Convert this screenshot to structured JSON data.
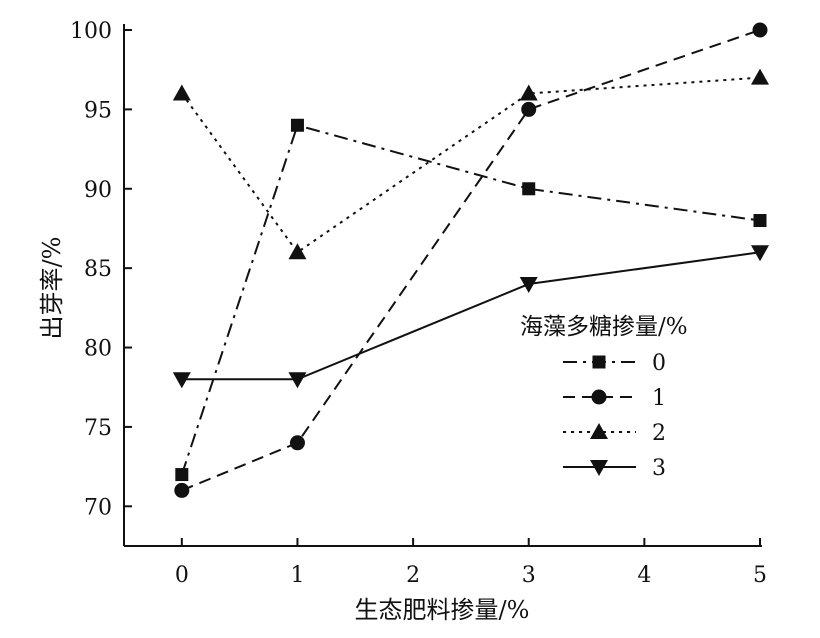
{
  "chart_data": {
    "type": "line",
    "xlabel": "生态肥料掺量/%",
    "ylabel": "出芽率/%",
    "x": [
      0,
      1,
      3,
      5
    ],
    "xlim": [
      -0.5,
      5
    ],
    "ylim": [
      67.5,
      100
    ],
    "xticks": [
      0,
      1,
      2,
      3,
      4,
      5
    ],
    "yticks": [
      70,
      75,
      80,
      85,
      90,
      95,
      100
    ],
    "grid": false,
    "legend": {
      "title": "海藻多糖掺量/%",
      "placement": "right"
    },
    "series": [
      {
        "name": "0",
        "marker": "square",
        "line": "dash-dot",
        "values": [
          72,
          94,
          90,
          88
        ]
      },
      {
        "name": "1",
        "marker": "circle",
        "line": "dashed",
        "values": [
          71,
          74,
          95,
          100
        ]
      },
      {
        "name": "2",
        "marker": "triangle-up",
        "line": "dotted",
        "values": [
          96,
          86,
          96,
          97
        ]
      },
      {
        "name": "3",
        "marker": "triangle-down",
        "line": "solid",
        "values": [
          78,
          78,
          84,
          86
        ]
      }
    ]
  }
}
